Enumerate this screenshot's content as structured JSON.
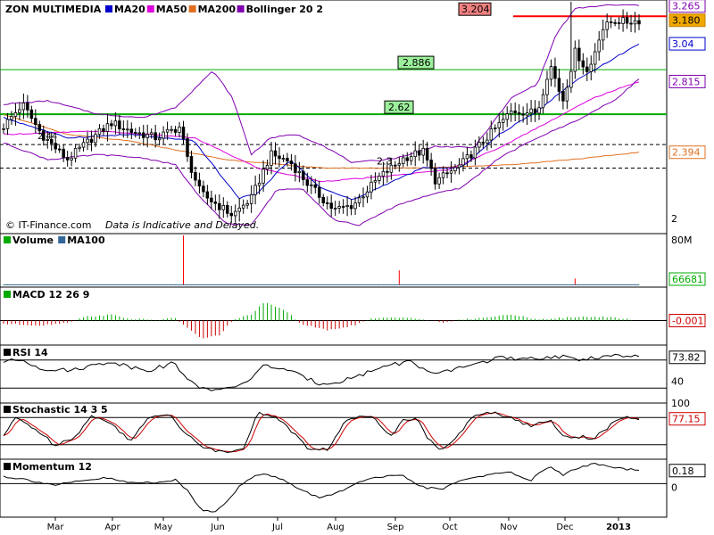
{
  "chart_data": {
    "type": "line",
    "title": "ZON MULTIMEDIA",
    "legend_position": "top-left",
    "grid": false,
    "watermark": "© IT-Finance.com",
    "note": "Data is Indicative and Delayed.",
    "x_ticks": [
      "Mar",
      "Apr",
      "May",
      "Jun",
      "Jul",
      "Aug",
      "Sep",
      "Oct",
      "Nov",
      "Dec",
      "2013"
    ],
    "colors": {
      "candle": "#000000",
      "ma20": "#0000cc",
      "ma50": "#dd00dd",
      "ma200": "#e07020",
      "bollinger": "#8000b0",
      "resistance": "#00aa00",
      "high_line": "#ff0000",
      "volume": "#00aa00",
      "macd_pos": "#00aa00",
      "macd_neg": "#cc0000",
      "stoch_signal": "#cc0000"
    },
    "main_panel": {
      "legend": [
        {
          "name": "MA20",
          "color": "#0000cc"
        },
        {
          "name": "MA50",
          "color": "#dd00dd"
        },
        {
          "name": "MA200",
          "color": "#e07020"
        },
        {
          "name": "Bollinger 20 2",
          "color": "#8000b0"
        }
      ],
      "y_range": [
        1.92,
        3.29
      ],
      "y_ticks": [
        "2"
      ],
      "labels": {
        "high": "3.204",
        "last": "3.180",
        "upper_band": "3.265",
        "ma20": "3.04",
        "ma50": "2.815",
        "ma200": "2.394"
      },
      "levels": [
        {
          "value": 2.886,
          "label": "2.886",
          "style": "solid-green"
        },
        {
          "value": 2.62,
          "label": "2.62",
          "style": "thick-green"
        },
        {
          "value": 2.44,
          "label": "2.44",
          "style": "dashed"
        },
        {
          "value": 2.3,
          "label": "2.3",
          "style": "dashed"
        }
      ],
      "high_value": 3.204,
      "close_anchors": [
        [
          0,
          2.55
        ],
        [
          0.03,
          2.68
        ],
        [
          0.06,
          2.5
        ],
        [
          0.1,
          2.35
        ],
        [
          0.14,
          2.48
        ],
        [
          0.17,
          2.57
        ],
        [
          0.2,
          2.52
        ],
        [
          0.24,
          2.48
        ],
        [
          0.28,
          2.55
        ],
        [
          0.285,
          2.4
        ],
        [
          0.31,
          2.15
        ],
        [
          0.36,
          2.02
        ],
        [
          0.39,
          2.12
        ],
        [
          0.42,
          2.38
        ],
        [
          0.45,
          2.34
        ],
        [
          0.48,
          2.2
        ],
        [
          0.52,
          2.05
        ],
        [
          0.55,
          2.08
        ],
        [
          0.59,
          2.24
        ],
        [
          0.63,
          2.36
        ],
        [
          0.66,
          2.4
        ],
        [
          0.68,
          2.22
        ],
        [
          0.72,
          2.32
        ],
        [
          0.76,
          2.48
        ],
        [
          0.8,
          2.64
        ],
        [
          0.84,
          2.63
        ],
        [
          0.86,
          2.92
        ],
        [
          0.88,
          2.7
        ],
        [
          0.9,
          3.0
        ],
        [
          0.92,
          2.86
        ],
        [
          0.94,
          3.12
        ],
        [
          0.96,
          3.18
        ],
        [
          0.98,
          3.17
        ],
        [
          1,
          3.18
        ]
      ],
      "ma20_anchors": [
        [
          0,
          2.6
        ],
        [
          0.1,
          2.48
        ],
        [
          0.2,
          2.5
        ],
        [
          0.3,
          2.46
        ],
        [
          0.37,
          2.12
        ],
        [
          0.4,
          2.15
        ],
        [
          0.45,
          2.35
        ],
        [
          0.5,
          2.18
        ],
        [
          0.55,
          2.11
        ],
        [
          0.6,
          2.2
        ],
        [
          0.66,
          2.3
        ],
        [
          0.72,
          2.3
        ],
        [
          0.78,
          2.5
        ],
        [
          0.84,
          2.64
        ],
        [
          0.9,
          2.82
        ],
        [
          1,
          3.04
        ]
      ],
      "ma50_anchors": [
        [
          0,
          2.5
        ],
        [
          0.15,
          2.52
        ],
        [
          0.3,
          2.48
        ],
        [
          0.4,
          2.3
        ],
        [
          0.5,
          2.22
        ],
        [
          0.6,
          2.25
        ],
        [
          0.7,
          2.29
        ],
        [
          0.78,
          2.42
        ],
        [
          0.86,
          2.58
        ],
        [
          0.93,
          2.72
        ],
        [
          1,
          2.815
        ]
      ],
      "ma200_anchors": [
        [
          0,
          2.62
        ],
        [
          0.1,
          2.5
        ],
        [
          0.2,
          2.46
        ],
        [
          0.35,
          2.35
        ],
        [
          0.5,
          2.3
        ],
        [
          0.65,
          2.3
        ],
        [
          0.8,
          2.32
        ],
        [
          0.92,
          2.36
        ],
        [
          1,
          2.394
        ]
      ],
      "bb_upper_anchors": [
        [
          0,
          2.68
        ],
        [
          0.07,
          2.7
        ],
        [
          0.15,
          2.62
        ],
        [
          0.22,
          2.6
        ],
        [
          0.27,
          2.66
        ],
        [
          0.33,
          2.88
        ],
        [
          0.36,
          2.72
        ],
        [
          0.39,
          2.38
        ],
        [
          0.42,
          2.48
        ],
        [
          0.46,
          2.5
        ],
        [
          0.5,
          2.44
        ],
        [
          0.55,
          2.33
        ],
        [
          0.62,
          2.36
        ],
        [
          0.68,
          2.43
        ],
        [
          0.74,
          2.42
        ],
        [
          0.8,
          2.72
        ],
        [
          0.84,
          2.8
        ],
        [
          0.87,
          3.1
        ],
        [
          0.9,
          3.25
        ],
        [
          0.95,
          3.27
        ],
        [
          1,
          3.27
        ]
      ],
      "bb_lower_anchors": [
        [
          0,
          2.45
        ],
        [
          0.07,
          2.35
        ],
        [
          0.15,
          2.38
        ],
        [
          0.22,
          2.36
        ],
        [
          0.27,
          2.32
        ],
        [
          0.31,
          2.12
        ],
        [
          0.35,
          1.97
        ],
        [
          0.39,
          1.96
        ],
        [
          0.43,
          2.17
        ],
        [
          0.47,
          2.18
        ],
        [
          0.52,
          1.99
        ],
        [
          0.56,
          1.96
        ],
        [
          0.62,
          2.08
        ],
        [
          0.67,
          2.14
        ],
        [
          0.72,
          2.18
        ],
        [
          0.78,
          2.36
        ],
        [
          0.84,
          2.48
        ],
        [
          0.9,
          2.58
        ],
        [
          0.96,
          2.7
        ],
        [
          1,
          2.83
        ]
      ]
    },
    "volume_panel": {
      "legend": [
        {
          "name": "Volume",
          "color": "#00aa00"
        },
        {
          "name": "MA100",
          "color": "#336699"
        }
      ],
      "y_range": [
        0,
        80000000
      ],
      "y_ticks": [
        "80M"
      ],
      "last_value": "66681",
      "spikes": [
        [
          0.285,
          80000000
        ],
        [
          0.625,
          24000000
        ],
        [
          0.9,
          11000000
        ]
      ]
    },
    "macd_panel": {
      "legend": [
        {
          "name": "MACD 12 26 9",
          "color": "#00aa00"
        }
      ],
      "y_range": [
        -0.07,
        0.07
      ],
      "last_value": "-0.001",
      "anchors": [
        [
          0,
          -0.01
        ],
        [
          0.06,
          -0.015
        ],
        [
          0.1,
          -0.006
        ],
        [
          0.13,
          0.012
        ],
        [
          0.17,
          0.018
        ],
        [
          0.2,
          0.005
        ],
        [
          0.24,
          0.002
        ],
        [
          0.27,
          0.008
        ],
        [
          0.31,
          -0.055
        ],
        [
          0.34,
          -0.045
        ],
        [
          0.36,
          0.0
        ],
        [
          0.39,
          0.02
        ],
        [
          0.41,
          0.055
        ],
        [
          0.44,
          0.035
        ],
        [
          0.47,
          -0.012
        ],
        [
          0.51,
          -0.03
        ],
        [
          0.55,
          -0.015
        ],
        [
          0.58,
          0.006
        ],
        [
          0.64,
          0.01
        ],
        [
          0.69,
          -0.006
        ],
        [
          0.73,
          0.004
        ],
        [
          0.77,
          0.012
        ],
        [
          0.8,
          0.018
        ],
        [
          0.84,
          0.004
        ],
        [
          0.88,
          0.008
        ],
        [
          0.92,
          0.012
        ],
        [
          0.96,
          0.01
        ],
        [
          1,
          -0.001
        ]
      ]
    },
    "rsi_panel": {
      "legend": [
        {
          "name": "RSI 14",
          "color": "#000000"
        }
      ],
      "y_range": [
        10,
        90
      ],
      "y_ticks": [
        "40"
      ],
      "bands": [
        70,
        30
      ],
      "last_value": "73.82",
      "anchors": [
        [
          0,
          68
        ],
        [
          0.03,
          70
        ],
        [
          0.06,
          58
        ],
        [
          0.1,
          55
        ],
        [
          0.14,
          62
        ],
        [
          0.17,
          68
        ],
        [
          0.2,
          60
        ],
        [
          0.23,
          56
        ],
        [
          0.27,
          66
        ],
        [
          0.29,
          40
        ],
        [
          0.31,
          32
        ],
        [
          0.34,
          26
        ],
        [
          0.36,
          30
        ],
        [
          0.39,
          44
        ],
        [
          0.41,
          62
        ],
        [
          0.44,
          58
        ],
        [
          0.47,
          46
        ],
        [
          0.5,
          36
        ],
        [
          0.53,
          40
        ],
        [
          0.56,
          48
        ],
        [
          0.6,
          62
        ],
        [
          0.64,
          68
        ],
        [
          0.68,
          48
        ],
        [
          0.72,
          60
        ],
        [
          0.75,
          66
        ],
        [
          0.78,
          74
        ],
        [
          0.81,
          70
        ],
        [
          0.84,
          72
        ],
        [
          0.87,
          76
        ],
        [
          0.9,
          70
        ],
        [
          0.93,
          74
        ],
        [
          0.96,
          76
        ],
        [
          1,
          73.82
        ]
      ]
    },
    "stochastic_panel": {
      "legend": [
        {
          "name": "Stochastic 14 3 5",
          "color": "#000000"
        }
      ],
      "y_range": [
        -10,
        110
      ],
      "y_ticks": [
        "100"
      ],
      "bands": [
        80,
        20
      ],
      "last_value": "77.15",
      "anchors": [
        [
          0,
          40
        ],
        [
          0.02,
          80
        ],
        [
          0.05,
          55
        ],
        [
          0.08,
          20
        ],
        [
          0.11,
          35
        ],
        [
          0.14,
          85
        ],
        [
          0.17,
          65
        ],
        [
          0.2,
          30
        ],
        [
          0.23,
          80
        ],
        [
          0.26,
          90
        ],
        [
          0.29,
          40
        ],
        [
          0.32,
          10
        ],
        [
          0.35,
          5
        ],
        [
          0.38,
          15
        ],
        [
          0.4,
          90
        ],
        [
          0.43,
          82
        ],
        [
          0.46,
          40
        ],
        [
          0.48,
          10
        ],
        [
          0.51,
          10
        ],
        [
          0.54,
          75
        ],
        [
          0.58,
          85
        ],
        [
          0.61,
          40
        ],
        [
          0.63,
          75
        ],
        [
          0.65,
          80
        ],
        [
          0.67,
          30
        ],
        [
          0.69,
          5
        ],
        [
          0.72,
          50
        ],
        [
          0.74,
          82
        ],
        [
          0.77,
          92
        ],
        [
          0.8,
          80
        ],
        [
          0.83,
          60
        ],
        [
          0.86,
          75
        ],
        [
          0.88,
          40
        ],
        [
          0.9,
          38
        ],
        [
          0.93,
          35
        ],
        [
          0.96,
          68
        ],
        [
          0.98,
          80
        ],
        [
          1,
          77.15
        ]
      ]
    },
    "momentum_panel": {
      "legend": [
        {
          "name": "Momentum 12",
          "color": "#000000"
        }
      ],
      "y_range": [
        -0.45,
        0.3
      ],
      "y_ticks": [
        "0"
      ],
      "last_value": "0.18",
      "anchors": [
        [
          0,
          0.1
        ],
        [
          0.04,
          0.05
        ],
        [
          0.08,
          -0.02
        ],
        [
          0.12,
          0.03
        ],
        [
          0.16,
          0.08
        ],
        [
          0.2,
          0.01
        ],
        [
          0.24,
          0.02
        ],
        [
          0.27,
          0.05
        ],
        [
          0.29,
          -0.1
        ],
        [
          0.31,
          -0.35
        ],
        [
          0.33,
          -0.4
        ],
        [
          0.35,
          -0.25
        ],
        [
          0.37,
          -0.05
        ],
        [
          0.39,
          0.08
        ],
        [
          0.41,
          0.15
        ],
        [
          0.44,
          0.05
        ],
        [
          0.47,
          -0.1
        ],
        [
          0.5,
          -0.2
        ],
        [
          0.53,
          -0.1
        ],
        [
          0.57,
          0.05
        ],
        [
          0.6,
          0.1
        ],
        [
          0.63,
          0.1
        ],
        [
          0.66,
          -0.05
        ],
        [
          0.69,
          -0.08
        ],
        [
          0.72,
          0.05
        ],
        [
          0.76,
          0.12
        ],
        [
          0.8,
          0.15
        ],
        [
          0.83,
          0.05
        ],
        [
          0.86,
          0.25
        ],
        [
          0.88,
          0.12
        ],
        [
          0.9,
          0.2
        ],
        [
          0.93,
          0.28
        ],
        [
          0.96,
          0.22
        ],
        [
          1,
          0.18
        ]
      ]
    }
  }
}
